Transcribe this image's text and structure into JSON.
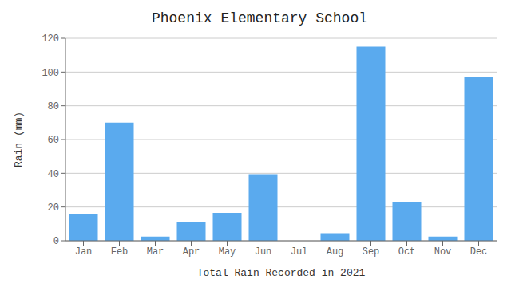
{
  "chart_data": {
    "type": "bar",
    "title": "Phoenix Elementary School",
    "xlabel": "Total Rain Recorded in 2021",
    "ylabel": "Rain (mm)",
    "categories": [
      "Jan",
      "Feb",
      "Mar",
      "Apr",
      "May",
      "Jun",
      "Jul",
      "Aug",
      "Sep",
      "Oct",
      "Nov",
      "Dec"
    ],
    "values": [
      16,
      70,
      2.5,
      11,
      16.5,
      39.5,
      0,
      4.5,
      115,
      23,
      2.5,
      97
    ],
    "color": "#5AAAEE",
    "ylim": [
      0,
      120
    ],
    "yticks": [
      0,
      20,
      40,
      60,
      80,
      100,
      120
    ],
    "grid": true
  }
}
